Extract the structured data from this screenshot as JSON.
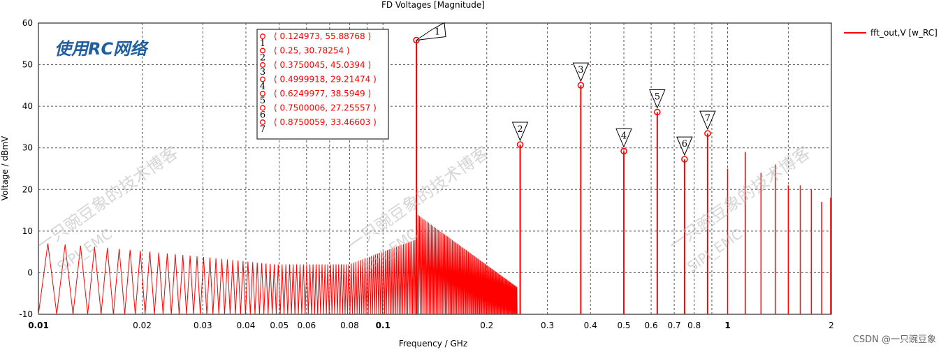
{
  "chart_data": {
    "type": "line",
    "title": "FD Voltages [Magnitude]",
    "xlabel": "Frequency / GHz",
    "ylabel": "Voltage / dBmV",
    "x_scale": "log",
    "xlim": [
      0.01,
      2
    ],
    "ylim": [
      -10,
      60
    ],
    "y_ticks": [
      -10,
      0,
      10,
      20,
      30,
      40,
      50,
      60
    ],
    "x_ticks": [
      {
        "v": 0.01,
        "label": "0.01",
        "major": true
      },
      {
        "v": 0.02,
        "label": "0.02"
      },
      {
        "v": 0.03,
        "label": "0.03"
      },
      {
        "v": 0.04,
        "label": "0.04"
      },
      {
        "v": 0.05,
        "label": "0.05"
      },
      {
        "v": 0.06,
        "label": "0.06"
      },
      {
        "v": 0.08,
        "label": "0.08"
      },
      {
        "v": 0.1,
        "label": "0.1",
        "major": true
      },
      {
        "v": 0.2,
        "label": "0.2"
      },
      {
        "v": 0.3,
        "label": "0.3"
      },
      {
        "v": 0.4,
        "label": "0.4"
      },
      {
        "v": 0.5,
        "label": "0.5"
      },
      {
        "v": 0.6,
        "label": "0.6"
      },
      {
        "v": 0.7,
        "label": "0.7"
      },
      {
        "v": 0.8,
        "label": "0.8"
      },
      {
        "v": 1,
        "label": "1",
        "major": true
      },
      {
        "v": 2,
        "label": "2"
      }
    ],
    "grid": true,
    "legend_position": "top-right",
    "series": [
      {
        "name": "fft_out,V [w_RC]",
        "color": "#ff0000"
      }
    ],
    "markers": [
      {
        "id": "1",
        "x": 0.124973,
        "y": 55.88768,
        "text": "( 0.124973, 55.88768 )"
      },
      {
        "id": "2",
        "x": 0.25,
        "y": 30.78254,
        "text": "( 0.25, 30.78254 )"
      },
      {
        "id": "3",
        "x": 0.3750045,
        "y": 45.0394,
        "text": "( 0.3750045, 45.0394 )"
      },
      {
        "id": "4",
        "x": 0.4999918,
        "y": 29.21474,
        "text": "( 0.4999918, 29.21474 )"
      },
      {
        "id": "5",
        "x": 0.6249977,
        "y": 38.5949,
        "text": "( 0.6249977, 38.5949 )"
      },
      {
        "id": "6",
        "x": 0.7500006,
        "y": 27.25557,
        "text": "( 0.7500006, 27.25557 )"
      },
      {
        "id": "7",
        "x": 0.8750059,
        "y": 33.46603,
        "text": "( 0.8750059, 33.46603 )"
      }
    ],
    "extra_peaks": [
      {
        "x": 1.0,
        "y": 25
      },
      {
        "x": 1.125,
        "y": 29
      },
      {
        "x": 1.25,
        "y": 24
      },
      {
        "x": 1.375,
        "y": 26
      },
      {
        "x": 1.5,
        "y": 21
      },
      {
        "x": 1.625,
        "y": 21
      },
      {
        "x": 1.75,
        "y": 20
      },
      {
        "x": 1.875,
        "y": 17
      },
      {
        "x": 2.0,
        "y": 18
      }
    ],
    "annotation": "使用RC网络"
  },
  "watermarks": [
    "一只豌豆象的技术博客",
    "SIPI_EMC"
  ],
  "footer": "CSDN @一只豌豆象"
}
